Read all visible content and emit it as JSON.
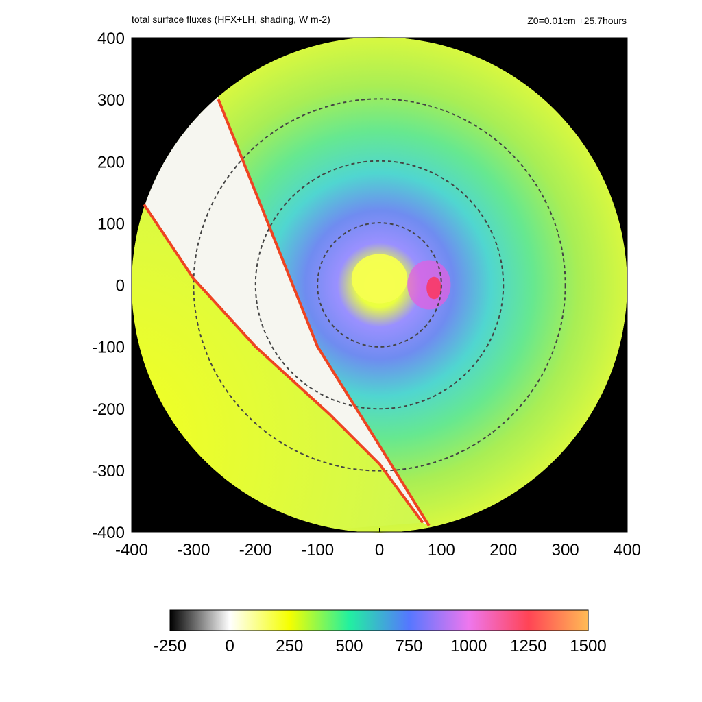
{
  "header": {
    "title": "total surface fluxes (HFX+LH, shading, W m-2)",
    "run_info": "Z0=0.01cm  +25.7hours"
  },
  "chart_data": {
    "type": "heatmap",
    "title": "total surface fluxes (HFX+LH, shading, W m-2)",
    "subtitle": "Z0=0.01cm  +25.7hours",
    "xlabel": "",
    "ylabel": "",
    "xlim": [
      -400,
      400
    ],
    "ylim": [
      -400,
      400
    ],
    "x_ticks": [
      "-400",
      "-300",
      "-200",
      "-100",
      "0",
      "100",
      "200",
      "300",
      "400"
    ],
    "y_ticks": [
      "400",
      "300",
      "200",
      "100",
      "0",
      "-100",
      "-200",
      "-300",
      "-400"
    ],
    "domain_radius": 400,
    "range_rings": [
      100,
      200,
      300
    ],
    "boundary_lines": [
      {
        "x": [
          -260,
          -180,
          -100,
          0,
          80
        ],
        "y": [
          300,
          100,
          -100,
          -260,
          -390
        ]
      },
      {
        "x": [
          -380,
          -300,
          -200,
          -80,
          0,
          70
        ],
        "y": [
          130,
          10,
          -100,
          -210,
          -290,
          -385
        ]
      }
    ],
    "colorbar": {
      "min": -250,
      "max": 1500,
      "tick_labels": [
        "-250",
        "0",
        "250",
        "500",
        "750",
        "1000",
        "1250",
        "1500"
      ],
      "stops": [
        {
          "value": -250,
          "color": "#000000"
        },
        {
          "value": 0,
          "color": "#ffffff"
        },
        {
          "value": 250,
          "color": "#f5ff00"
        },
        {
          "value": 500,
          "color": "#22f0a0"
        },
        {
          "value": 750,
          "color": "#5577ff"
        },
        {
          "value": 1000,
          "color": "#ee77ee"
        },
        {
          "value": 1250,
          "color": "#ff4455"
        },
        {
          "value": 1500,
          "color": "#ffbb55"
        }
      ]
    },
    "outside_color": "#000000"
  }
}
